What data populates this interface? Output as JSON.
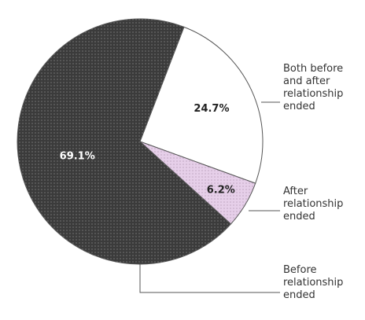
{
  "chart_data": {
    "type": "pie",
    "categories": [
      "Both before and after relationship ended",
      "After relationship ended",
      "Before relationship ended"
    ],
    "values": [
      24.7,
      6.2,
      69.1
    ],
    "value_labels": [
      "24.7%",
      "6.2%",
      "69.1%"
    ],
    "colors": [
      "#ffffff",
      "#e6cfe9",
      "#3b3b3b"
    ]
  }
}
